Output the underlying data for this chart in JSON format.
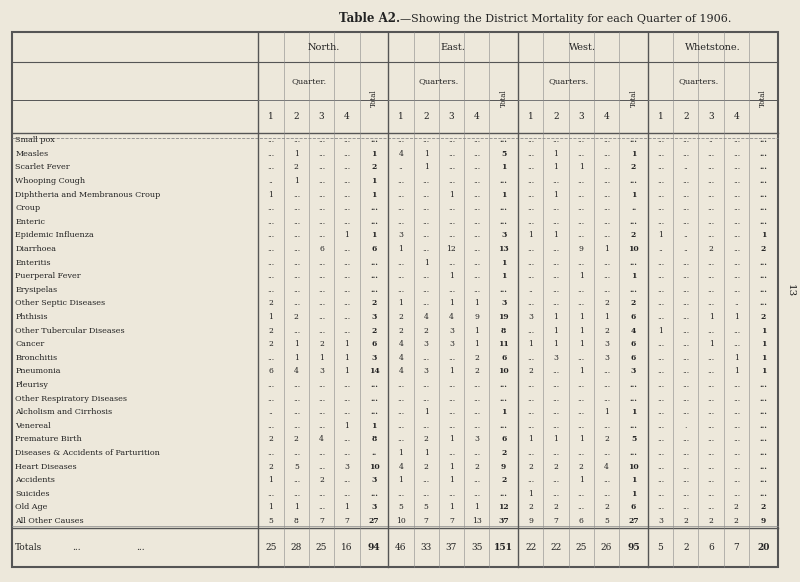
{
  "title_bold": "Table A2.",
  "title_rest": "—Showing the District Mortality for each Quarter of 1906.",
  "bg_color": "#ede8db",
  "rows": [
    [
      "Small pox",
      "...",
      "...",
      "...",
      "...",
      "...",
      "...",
      "...",
      "...",
      "...",
      "...",
      "...",
      "...",
      "...",
      "...",
      "...",
      "...",
      "...",
      "..",
      "...",
      "..."
    ],
    [
      "Measles",
      "...",
      "1",
      "...",
      "...",
      "1",
      "4",
      "1",
      "...",
      "...",
      "5",
      "...",
      "1",
      "...",
      "...",
      "1",
      "...",
      "...",
      "...",
      "...",
      "..."
    ],
    [
      "Scarlet Fever",
      "...",
      "2",
      "...",
      "...",
      "2",
      "..",
      "1",
      "...",
      "...",
      "1",
      "...",
      "1",
      "1",
      "...",
      "2",
      "...",
      "..",
      "...",
      "...",
      "..."
    ],
    [
      "Whooping Cough",
      "..",
      "1",
      "...",
      "...",
      "1",
      "...",
      "...",
      "...",
      "...",
      "...",
      "...",
      "...",
      "...",
      "...",
      "...",
      "...",
      "...",
      "...",
      "...",
      "..."
    ],
    [
      "Diphtheria and Membranous Croup",
      "1",
      "...",
      "...",
      "...",
      "1",
      "...",
      "...",
      "1",
      "...",
      "1",
      "...",
      "1",
      "...",
      "...",
      "1",
      "...",
      "...",
      "...",
      "...",
      "..."
    ],
    [
      "Croup",
      "...",
      "...",
      "...",
      "...",
      "...",
      "...",
      "...",
      "...",
      "...",
      "...",
      "...",
      "...",
      "...",
      "...",
      "..",
      "...",
      "...",
      "...",
      "...",
      "..."
    ],
    [
      "Enteric",
      "...",
      "...",
      "...",
      "...",
      "...",
      "...",
      "...",
      "...",
      "...",
      "...",
      "...",
      "...",
      "...",
      "...",
      "...",
      "...",
      "...",
      "...",
      "...",
      "..."
    ],
    [
      "Epidemic Influenza",
      "...",
      "...",
      "...",
      "1",
      "1",
      "3",
      "...",
      "...",
      "...",
      "3",
      "1",
      "1",
      "...",
      "...",
      "2",
      "1",
      "..",
      "...",
      "...",
      "1"
    ],
    [
      "Diarrhoea",
      "...",
      "...",
      "6",
      "...",
      "6",
      "1",
      "...",
      "12",
      "...",
      "13",
      "...",
      "...",
      "9",
      "1",
      "10",
      "..",
      "..",
      "2",
      "...",
      "2"
    ],
    [
      "Enteritis",
      "...",
      "...",
      "...",
      "...",
      "...",
      "...",
      "1",
      "...",
      "...",
      "1",
      "...",
      "...",
      "...",
      "...",
      "...",
      "...",
      "...",
      "...",
      "...",
      "..."
    ],
    [
      "Puerperal Fever",
      "...",
      "...",
      "...",
      "...",
      "...",
      "...",
      "...",
      "1",
      "...",
      "1",
      "...",
      "...",
      "1",
      "...",
      "1",
      "...",
      "...",
      "...",
      "...",
      "..."
    ],
    [
      "Erysipelas",
      "...",
      "...",
      "...",
      "...",
      "...",
      "...",
      "...",
      "...",
      "...",
      "...",
      "..",
      "...",
      "...",
      "...",
      "...",
      "...",
      "...",
      "...",
      "...",
      "..."
    ],
    [
      "Other Septic Diseases",
      "2",
      "...",
      "...",
      "...",
      "2",
      "1",
      "...",
      "1",
      "1",
      "3",
      "...",
      "...",
      "...",
      "2",
      "2",
      "...",
      "...",
      "...",
      "..",
      "..."
    ],
    [
      "Phthisis",
      "1",
      "2",
      "...",
      "...",
      "3",
      "2",
      "4",
      "4",
      "9",
      "19",
      "3",
      "1",
      "1",
      "1",
      "6",
      "...",
      "...",
      "1",
      "1",
      "2"
    ],
    [
      "Other Tubercular Diseases",
      "2",
      "...",
      "...",
      "...",
      "2",
      "2",
      "2",
      "3",
      "1",
      "8",
      "...",
      "1",
      "1",
      "2",
      "4",
      "1",
      "...",
      "...",
      "...",
      "1"
    ],
    [
      "Cancer",
      "2",
      "1",
      "2",
      "1",
      "6",
      "4",
      "3",
      "3",
      "1",
      "11",
      "1",
      "1",
      "1",
      "3",
      "6",
      "...",
      "...",
      "1",
      "...",
      "1"
    ],
    [
      "Bronchitis",
      "...",
      "1",
      "1",
      "1",
      "3",
      "4",
      "...",
      "...",
      "2",
      "6",
      "...",
      "3",
      "...",
      "3",
      "6",
      "...",
      "...",
      "...",
      "1",
      "1"
    ],
    [
      "Pneumonia",
      "6",
      "4",
      "3",
      "1",
      "14",
      "4",
      "3",
      "1",
      "2",
      "10",
      "2",
      "...",
      "1",
      "...",
      "3",
      "...",
      "...",
      "...",
      "1",
      "1"
    ],
    [
      "Pleurisy",
      "...",
      "...",
      "...",
      "...",
      "...",
      "...",
      "...",
      "...",
      "...",
      "...",
      "...",
      "...",
      "...",
      "...",
      "...",
      "...",
      "...",
      "...",
      "...",
      "..."
    ],
    [
      "Other Respiratory Diseases",
      "...",
      "...",
      "...",
      "...",
      "...",
      "...",
      "...",
      "...",
      "...",
      "...",
      "...",
      "...",
      "...",
      "...",
      "...",
      "...",
      "...",
      "...",
      "...",
      "..."
    ],
    [
      "Alcholism and Cirrhosis",
      "..",
      "...",
      "...",
      "...",
      "...",
      "...",
      "1",
      "...",
      "...",
      "1",
      "...",
      "...",
      "...",
      "1",
      "1",
      "...",
      "...",
      "...",
      "...",
      "..."
    ],
    [
      "Venereal",
      "...",
      "...",
      "...",
      "1",
      "1",
      "...",
      "...",
      "...",
      "...",
      "...",
      "...",
      "...",
      "...",
      "...",
      "...",
      "...",
      ".",
      "...",
      "...",
      "..."
    ],
    [
      "Premature Birth",
      "2",
      "2",
      "4",
      "...",
      "8",
      "...",
      "2",
      "1",
      "3",
      "6",
      "1",
      "1",
      "1",
      "2",
      "5",
      "...",
      "...",
      "...",
      "...",
      "..."
    ],
    [
      "Diseases & Accidents of Parturition",
      "...",
      "...",
      "...",
      "...",
      "..",
      "1",
      "1",
      "...",
      "...",
      "2",
      "...",
      "...",
      "...",
      "...",
      "...",
      "...",
      "...",
      "...",
      "...",
      "..."
    ],
    [
      "Heart Diseases",
      "2",
      "5",
      "...",
      "3",
      "10",
      "4",
      "2",
      "1",
      "2",
      "9",
      "2",
      "2",
      "2",
      "4",
      "10",
      "...",
      "...",
      "...",
      "...",
      "..."
    ],
    [
      "Accidents",
      "1",
      "...",
      "2",
      "...",
      "3",
      "1",
      "...",
      "1",
      "...",
      "2",
      "...",
      "...",
      "1",
      "...",
      "1",
      "...",
      "...",
      "...",
      "...",
      "..."
    ],
    [
      "Suicides",
      "...",
      "...",
      "...",
      "...",
      "...",
      "...",
      "...",
      "...",
      "...",
      "...",
      "1",
      "...",
      "...",
      "...",
      "1",
      "...",
      "...",
      "...",
      "...",
      "..."
    ],
    [
      "Old Age",
      "1",
      "1",
      "...",
      "1",
      "3",
      "5",
      "5",
      "1",
      "1",
      "12",
      "2",
      "2",
      "...",
      "2",
      "6",
      "...",
      "...",
      "...",
      "2",
      "2"
    ],
    [
      "All Other Causes",
      "5",
      "8",
      "7",
      "7",
      "27",
      "10",
      "7",
      "7",
      "13",
      "37",
      "9",
      "7",
      "6",
      "5",
      "27",
      "3",
      "2",
      "2",
      "2",
      "9"
    ]
  ],
  "totals_row": [
    "Totals",
    "25",
    "28",
    "25",
    "16",
    "94",
    "46",
    "33",
    "37",
    "35",
    "151",
    "22",
    "22",
    "25",
    "26",
    "95",
    "5",
    "2",
    "6",
    "7",
    "20"
  ],
  "district_labels": [
    "North.",
    "East.",
    "West.",
    "Whetstone."
  ],
  "quarter_labels": [
    "Quarter.",
    "Quarters.",
    "Quarters.",
    "Quarters."
  ],
  "page_number": "13",
  "line_color": "#555555",
  "text_color": "#222222"
}
